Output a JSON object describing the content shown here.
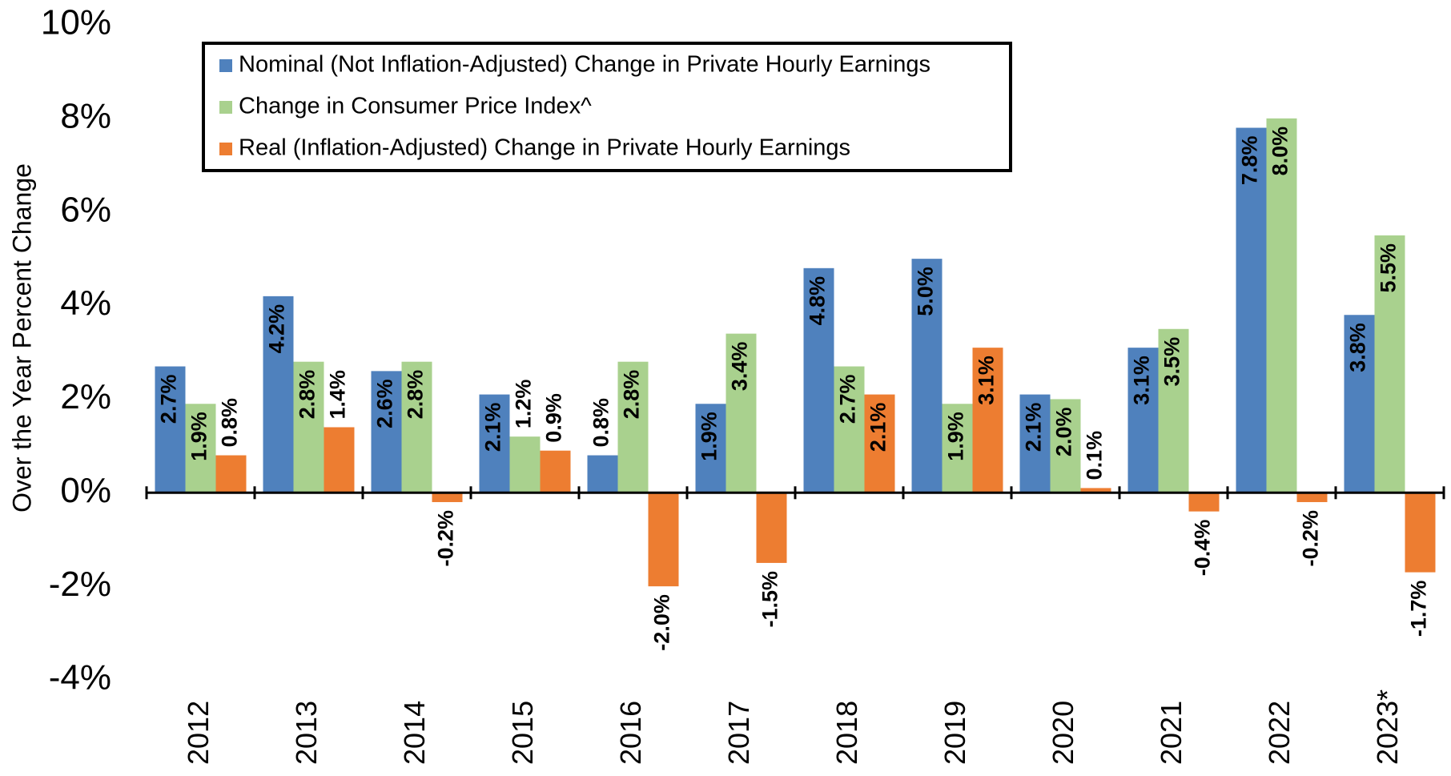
{
  "chart_data": {
    "type": "bar",
    "y_label": "Over the Year Percent Change",
    "categories": [
      "2012",
      "2013",
      "2014",
      "2015",
      "2016",
      "2017",
      "2018",
      "2019",
      "2020",
      "2021",
      "2022",
      "2023*"
    ],
    "series": [
      {
        "name": "Nominal (Not Inflation-Adjusted) Change in Private Hourly Earnings",
        "color": "#4f81bd",
        "values": [
          2.7,
          4.2,
          2.6,
          2.1,
          0.8,
          1.9,
          4.8,
          5.0,
          2.1,
          3.1,
          7.8,
          3.8
        ],
        "value_labels": [
          "2.7%",
          "4.2%",
          "2.6%",
          "2.1%",
          "0.8%",
          "1.9%",
          "4.8%",
          "5.0%",
          "2.1%",
          "3.1%",
          "7.8%",
          "3.8%"
        ]
      },
      {
        "name": "Change in Consumer Price Index^",
        "color": "#a9d18e",
        "values": [
          1.9,
          2.8,
          2.8,
          1.2,
          2.8,
          3.4,
          2.7,
          1.9,
          2.0,
          3.5,
          8.0,
          5.5
        ],
        "value_labels": [
          "1.9%",
          "2.8%",
          "2.8%",
          "1.2%",
          "2.8%",
          "3.4%",
          "2.7%",
          "1.9%",
          "2.0%",
          "3.5%",
          "8.0%",
          "5.5%"
        ]
      },
      {
        "name": "Real (Inflation-Adjusted) Change in Private Hourly Earnings",
        "color": "#ed7d31",
        "values": [
          0.8,
          1.4,
          -0.2,
          0.9,
          -2.0,
          -1.5,
          2.1,
          3.1,
          0.1,
          -0.4,
          -0.2,
          -1.7
        ],
        "value_labels": [
          "0.8%",
          "1.4%",
          "-0.2%",
          "0.9%",
          "-2.0%",
          "-1.5%",
          "2.1%",
          "3.1%",
          "0.1%",
          "-0.4%",
          "-0.2%",
          "-1.7%"
        ]
      }
    ],
    "ylim": [
      -4,
      10
    ],
    "yticks": [
      {
        "value": -4,
        "label": "-4%"
      },
      {
        "value": -2,
        "label": "-2%"
      },
      {
        "value": 0,
        "label": "0%"
      },
      {
        "value": 2,
        "label": "2%"
      },
      {
        "value": 4,
        "label": "4%"
      },
      {
        "value": 6,
        "label": "6%"
      },
      {
        "value": 8,
        "label": "8%"
      },
      {
        "value": 10,
        "label": "10%"
      }
    ],
    "grid": false,
    "legend": "upper-left"
  }
}
